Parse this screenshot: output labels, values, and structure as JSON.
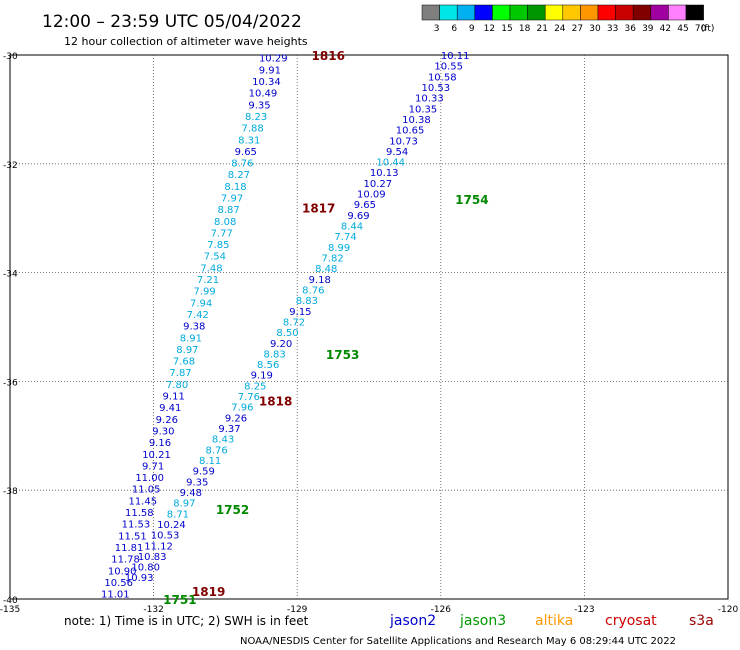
{
  "header": {
    "title": "12:00 – 23:59 UTC 05/04/2022",
    "subtitle": "12 hour collection of altimeter wave heights"
  },
  "colorbar": {
    "labels": [
      "3",
      "6",
      "9",
      "12",
      "15",
      "18",
      "21",
      "24",
      "27",
      "30",
      "33",
      "36",
      "39",
      "42",
      "45",
      "70",
      "(ft)"
    ],
    "colors": [
      "#7f7f7f",
      "#00e6e6",
      "#00b0f0",
      "#0000ff",
      "#00ff00",
      "#00c800",
      "#009600",
      "#ffff00",
      "#ffc800",
      "#ff9600",
      "#ff0000",
      "#c80000",
      "#800000",
      "#a000a0",
      "#ff80ff",
      "#000000"
    ]
  },
  "footer": {
    "note": "note: 1) Time is in UTC; 2) SWH is in feet",
    "satellites": [
      {
        "name": "jason2",
        "color": "#0000cc"
      },
      {
        "name": "jason3",
        "color": "#009900"
      },
      {
        "name": "altika",
        "color": "#ff9900"
      },
      {
        "name": "cryosat",
        "color": "#cc0000"
      },
      {
        "name": "s3a",
        "color": "#990000"
      }
    ],
    "credit": "NOAA/NESDIS Center for Satellite Applications and Research   May  6 08:29:44 UTC 2022"
  },
  "chart_data": {
    "type": "scatter",
    "title": "12:00 – 23:59 UTC 05/04/2022",
    "subtitle": "12 hour collection of altimeter wave heights",
    "xlim": [
      -135,
      -120
    ],
    "ylim": [
      -40,
      -30
    ],
    "x_ticks": [
      -135,
      -132,
      -129,
      -126,
      -123,
      -120
    ],
    "x_tick_labels": [
      "-135",
      "-132",
      "-129",
      "-126",
      "-123",
      "-120"
    ],
    "y_ticks": [
      -30,
      -32,
      -34,
      -36,
      -38,
      -40
    ],
    "y_tick_labels": [
      "-30",
      "-32",
      "-34",
      "-36",
      "-38",
      "-40"
    ],
    "grid": true,
    "series": [
      {
        "name": "1816",
        "label_color": "#800000",
        "label_lat": -30.0,
        "label_lon": -128.7,
        "start": [
          -129.5,
          -30.05
        ],
        "end": [
          -132.8,
          -39.9
        ],
        "values": [
          "10.29",
          "9.91",
          "10.34",
          "10.49",
          "9.35",
          "8.23",
          "7.88",
          "8.31",
          "9.65",
          "8.76",
          "8.27",
          "8.18",
          "7.97",
          "8.87",
          "8.08",
          "7.77",
          "7.85",
          "7.54",
          "7.48",
          "7.21",
          "7.99",
          "7.94",
          "7.42",
          "9.38",
          "8.91",
          "8.97",
          "7.68",
          "7.87",
          "7.80",
          "9.11",
          "9.41",
          "9.26",
          "9.30",
          "9.16",
          "10.21",
          "9.71",
          "11.00",
          "11.05",
          "11.45",
          "11.58",
          "11.53",
          "11.51",
          "11.81",
          "11.78",
          "10.90",
          "10.56",
          "11.01"
        ],
        "colors": [
          "#0000cc",
          "#0000cc",
          "#0000cc",
          "#0000cc",
          "#0000cc",
          "#00aadd",
          "#00aadd",
          "#00aadd",
          "#0000cc",
          "#00aadd",
          "#00aadd",
          "#00aadd",
          "#00aadd",
          "#00aadd",
          "#00aadd",
          "#00aadd",
          "#00aadd",
          "#00aadd",
          "#00aadd",
          "#00aadd",
          "#00aadd",
          "#00aadd",
          "#00aadd",
          "#0000cc",
          "#00aadd",
          "#00aadd",
          "#00aadd",
          "#00aadd",
          "#00aadd",
          "#0000cc",
          "#0000cc",
          "#0000cc",
          "#0000cc",
          "#0000cc",
          "#0000cc",
          "#0000cc",
          "#0000cc",
          "#0000cc",
          "#0000cc",
          "#0000cc",
          "#0000cc",
          "#0000cc",
          "#0000cc",
          "#0000cc",
          "#0000cc",
          "#0000cc",
          "#0000cc"
        ]
      },
      {
        "name": "1817",
        "label_color": "#800000",
        "label_lat": -32.8,
        "label_lon": -128.9,
        "start": [
          -125.7,
          -30.0
        ],
        "end": [
          -132.3,
          -39.6
        ],
        "values": [
          "10.11",
          "10.55",
          "10.58",
          "10.53",
          "10.33",
          "10.35",
          "10.38",
          "10.65",
          "10.73",
          "9.54",
          "10.44",
          "10.13",
          "10.27",
          "10.09",
          "9.65",
          "9.69",
          "8.44",
          "7.74",
          "8.99",
          "7.82",
          "8.48",
          "9.18",
          "8.76",
          "8.83",
          "9.15",
          "8.72",
          "8.50",
          "9.20",
          "8.83",
          "8.56",
          "9.19",
          "8.25",
          "7.76",
          "7.96",
          "9.26",
          "9.37",
          "8.43",
          "8.76",
          "8.11",
          "9.59",
          "9.35",
          "9.48",
          "8.97",
          "8.71",
          "10.24",
          "10.53",
          "11.12",
          "10.83",
          "10.80",
          "10.93"
        ],
        "colors": [
          "#0000cc",
          "#0000cc",
          "#0000cc",
          "#0000cc",
          "#0000cc",
          "#0000cc",
          "#0000cc",
          "#0000cc",
          "#0000cc",
          "#0000cc",
          "#00aadd",
          "#0000cc",
          "#0000cc",
          "#0000cc",
          "#0000cc",
          "#0000cc",
          "#00aadd",
          "#00aadd",
          "#00aadd",
          "#00aadd",
          "#00aadd",
          "#0000cc",
          "#00aadd",
          "#00aadd",
          "#0000cc",
          "#00aadd",
          "#00aadd",
          "#0000cc",
          "#00aadd",
          "#00aadd",
          "#0000cc",
          "#00aadd",
          "#00aadd",
          "#00aadd",
          "#0000cc",
          "#0000cc",
          "#00aadd",
          "#00aadd",
          "#00aadd",
          "#0000cc",
          "#0000cc",
          "#0000cc",
          "#00aadd",
          "#00aadd",
          "#0000cc",
          "#0000cc",
          "#0000cc",
          "#0000cc",
          "#0000cc",
          "#0000cc"
        ]
      },
      {
        "name": "1818",
        "label_color": "#800000",
        "label_lat": -36.35,
        "label_lon": -129.8,
        "points": []
      },
      {
        "name": "1819",
        "label_color": "#800000",
        "label_lat": -39.85,
        "label_lon": -131.2,
        "points": []
      },
      {
        "name": "1754",
        "label_color": "#008800",
        "label_lat": -32.65,
        "label_lon": -125.7,
        "points": []
      },
      {
        "name": "1753",
        "label_color": "#008800",
        "label_lat": -35.5,
        "label_lon": -128.4,
        "points": []
      },
      {
        "name": "1752",
        "label_color": "#008800",
        "label_lat": -38.35,
        "label_lon": -130.7,
        "points": []
      },
      {
        "name": "1751",
        "label_color": "#008800",
        "label_lat": -40.0,
        "label_lon": -131.8,
        "points": []
      }
    ]
  }
}
